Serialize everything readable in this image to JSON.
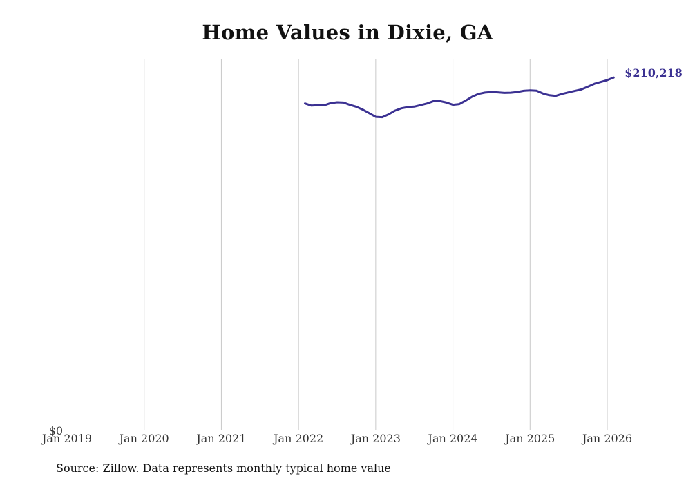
{
  "chart_data": {
    "type": "line",
    "title": "Home Values in Dixie, GA",
    "xlabel": "",
    "ylabel": "",
    "x_ticks": [
      "Jan 2019",
      "Jan 2020",
      "Jan 2021",
      "Jan 2022",
      "Jan 2023",
      "Jan 2024",
      "Jan 2025",
      "Jan 2026"
    ],
    "y_ticks": [
      "$0"
    ],
    "xlim": [
      "2019-01",
      "2026-01"
    ],
    "ylim": [
      0,
      221000
    ],
    "grid": {
      "vertical": true,
      "horizontal": false
    },
    "line_color": "#3b3192",
    "end_label": "$210,218",
    "series": [
      {
        "x": [
          "2022-02",
          "2022-03",
          "2022-04",
          "2022-05",
          "2022-06",
          "2022-07",
          "2022-08",
          "2022-09",
          "2022-10",
          "2022-11",
          "2022-12",
          "2023-01",
          "2023-02",
          "2023-03",
          "2023-04",
          "2023-05",
          "2023-06",
          "2023-07",
          "2023-08",
          "2023-09",
          "2023-10",
          "2023-11",
          "2023-12",
          "2024-01",
          "2024-02",
          "2024-03",
          "2024-04",
          "2024-05",
          "2024-06",
          "2024-07",
          "2024-08",
          "2024-09",
          "2024-10",
          "2024-11",
          "2024-12",
          "2025-01",
          "2025-02",
          "2025-03",
          "2025-04",
          "2025-05",
          "2025-06",
          "2025-07",
          "2025-08",
          "2025-09",
          "2025-10",
          "2025-11",
          "2025-12",
          "2026-01",
          "2026-02"
        ],
        "values": [
          194800,
          193500,
          193700,
          193700,
          195000,
          195500,
          195300,
          193900,
          192800,
          191100,
          189000,
          186800,
          186600,
          188300,
          190500,
          191900,
          192600,
          192900,
          193800,
          194800,
          196200,
          196200,
          195300,
          194000,
          194400,
          196500,
          198800,
          200500,
          201300,
          201600,
          201400,
          201100,
          201200,
          201600,
          202300,
          202600,
          202400,
          200700,
          199700,
          199300,
          200500,
          201400,
          202300,
          203200,
          204800,
          206500,
          207600,
          208700,
          210218
        ]
      }
    ]
  },
  "source_note": "Source: Zillow. Data represents monthly typical home value"
}
